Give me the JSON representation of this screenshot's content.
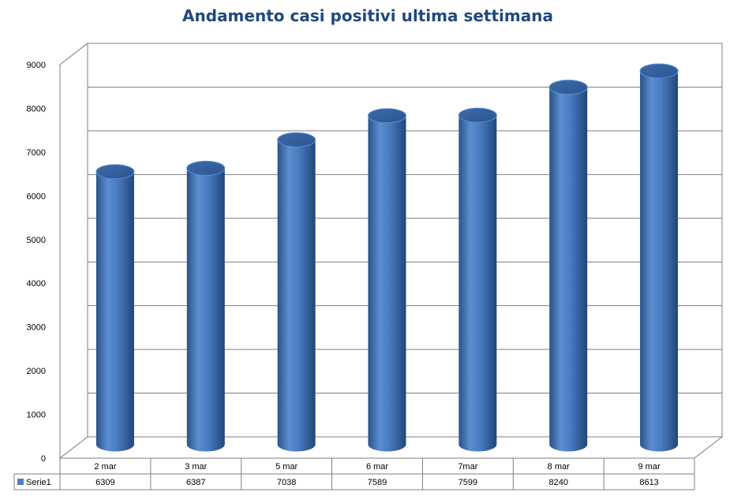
{
  "chart_data": {
    "type": "bar",
    "title": "Andamento casi positivi ultima settimana",
    "categories": [
      "2 mar",
      "3 mar",
      "5 mar",
      "6 mar",
      "7mar",
      "8 mar",
      "9 mar"
    ],
    "series": [
      {
        "name": "Serie1",
        "values": [
          6309,
          6387,
          7038,
          7589,
          7599,
          8240,
          8613
        ]
      }
    ],
    "value_labels": [
      "6309",
      "6387",
      "7038",
      "7589",
      "7599",
      "8240",
      "8613"
    ],
    "ylim": [
      0,
      9000
    ],
    "yticks": [
      "0",
      "1000",
      "2000",
      "3000",
      "4000",
      "5000",
      "6000",
      "7000",
      "8000",
      "9000"
    ],
    "xlabel": "",
    "ylabel": "",
    "grid": true,
    "legend": "bottom-left (data table)",
    "shape": "3d-cylinder",
    "colors": {
      "bar": "#4f81bd",
      "bar_dark": "#2a5288",
      "title": "#1f497d",
      "grid": "#7f7f7f"
    }
  }
}
